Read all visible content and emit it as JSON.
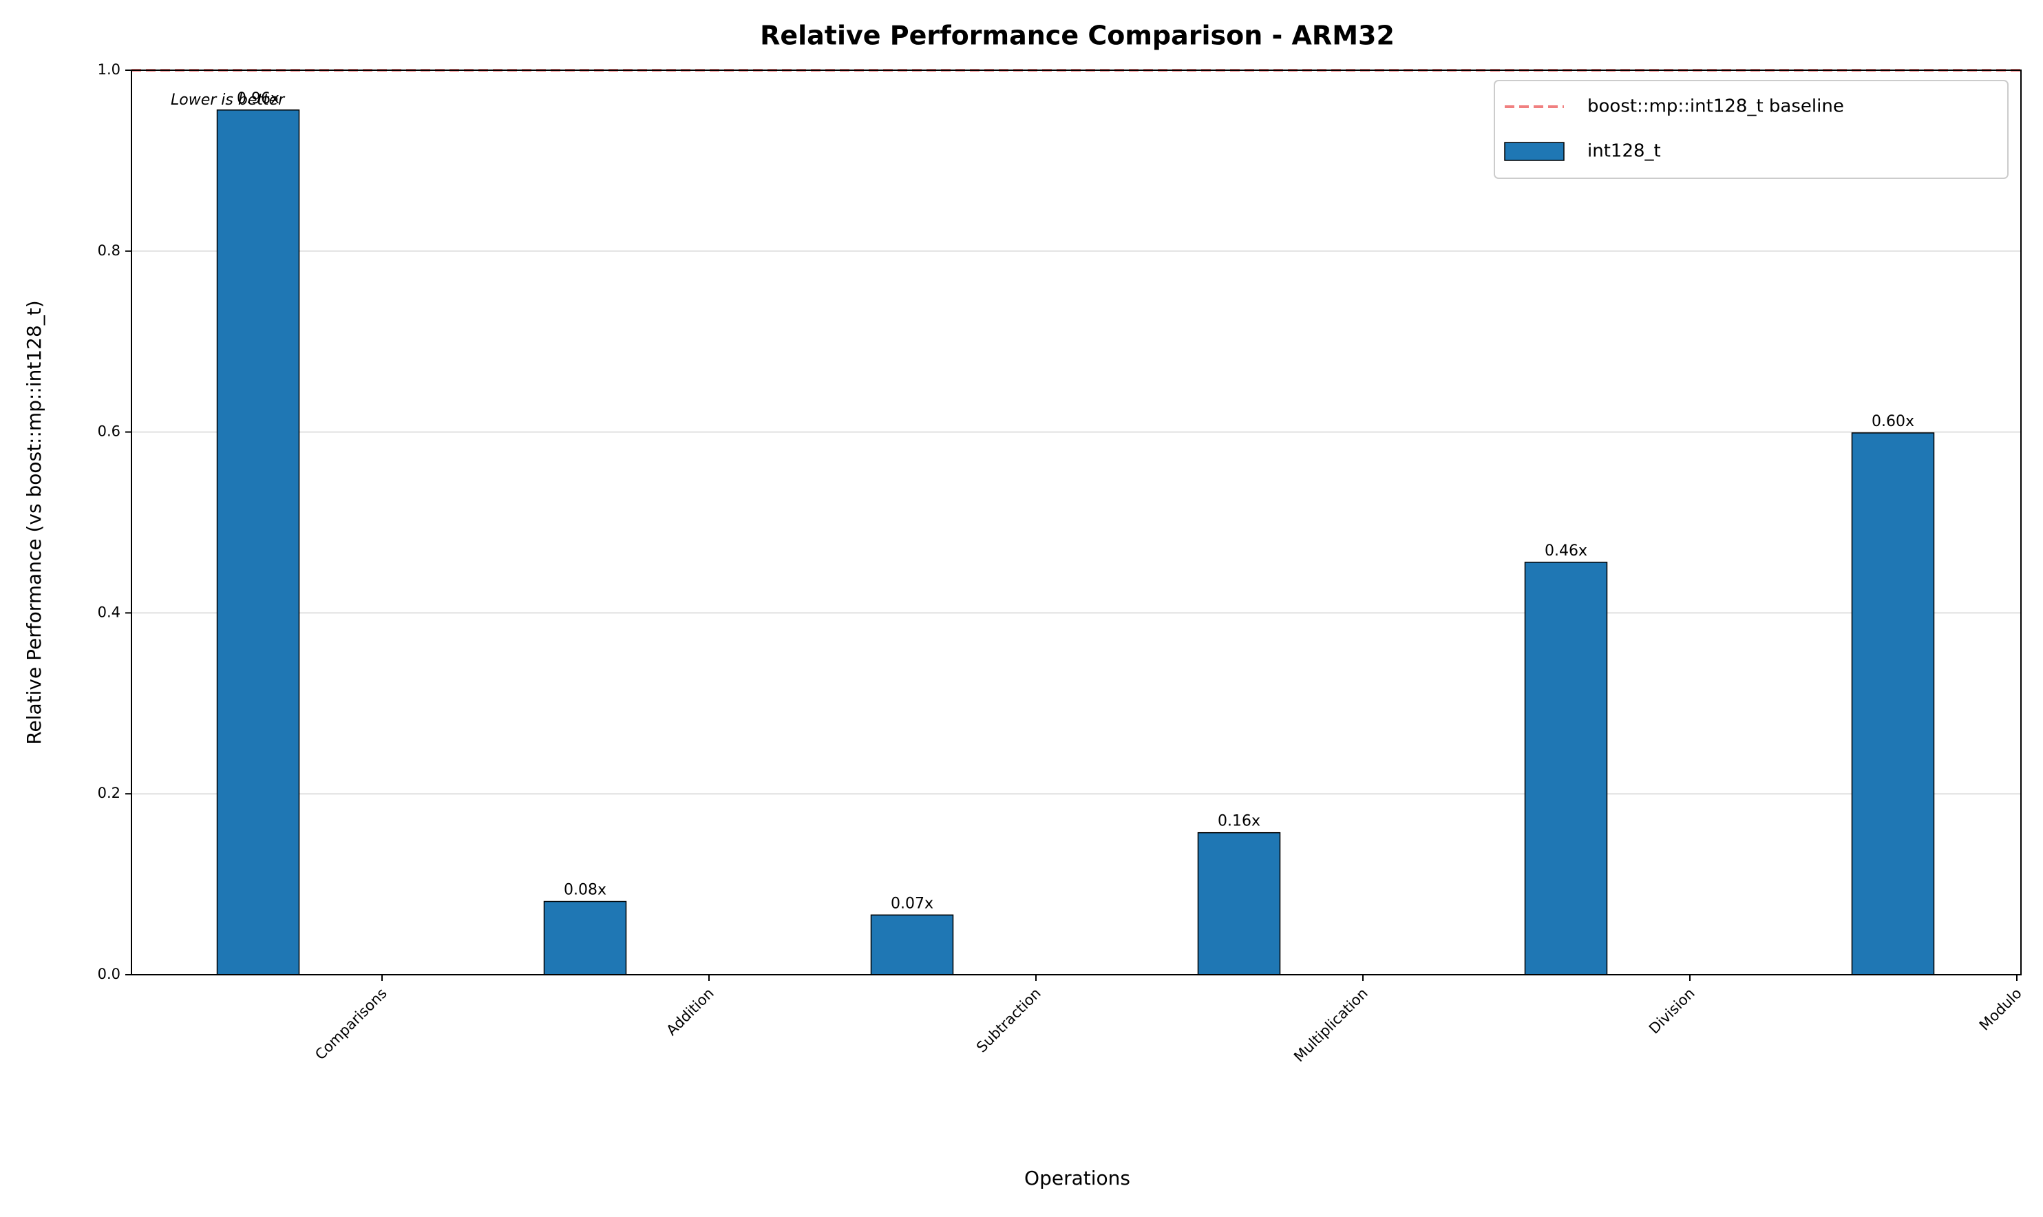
{
  "chart_data": {
    "type": "bar",
    "title": "Relative Performance Comparison - ARM32",
    "xlabel": "Operations",
    "ylabel": "Relative Performance (vs boost::mp::int128_t)",
    "annotation": "Lower is better",
    "categories": [
      "Comparisons",
      "Addition",
      "Subtraction",
      "Multiplication",
      "Division",
      "Modulo"
    ],
    "series": [
      {
        "name": "int128_t",
        "color": "#1f77b4",
        "values": [
          0.956,
          0.081,
          0.066,
          0.157,
          0.456,
          0.599
        ],
        "value_labels": [
          "0.96x",
          "0.08x",
          "0.07x",
          "0.16x",
          "0.46x",
          "0.60x"
        ]
      }
    ],
    "baseline": {
      "name": "boost::mp::int128_t baseline",
      "value": 1.0,
      "color": "#f08080"
    },
    "ylim": [
      0,
      1.0
    ],
    "yticks": [
      {
        "value": 0,
        "label": "0.0"
      },
      0.2,
      0.4,
      0.6,
      0.8,
      {
        "value": 1,
        "label": "1.0"
      }
    ],
    "grid": true,
    "legend": "upper right"
  }
}
